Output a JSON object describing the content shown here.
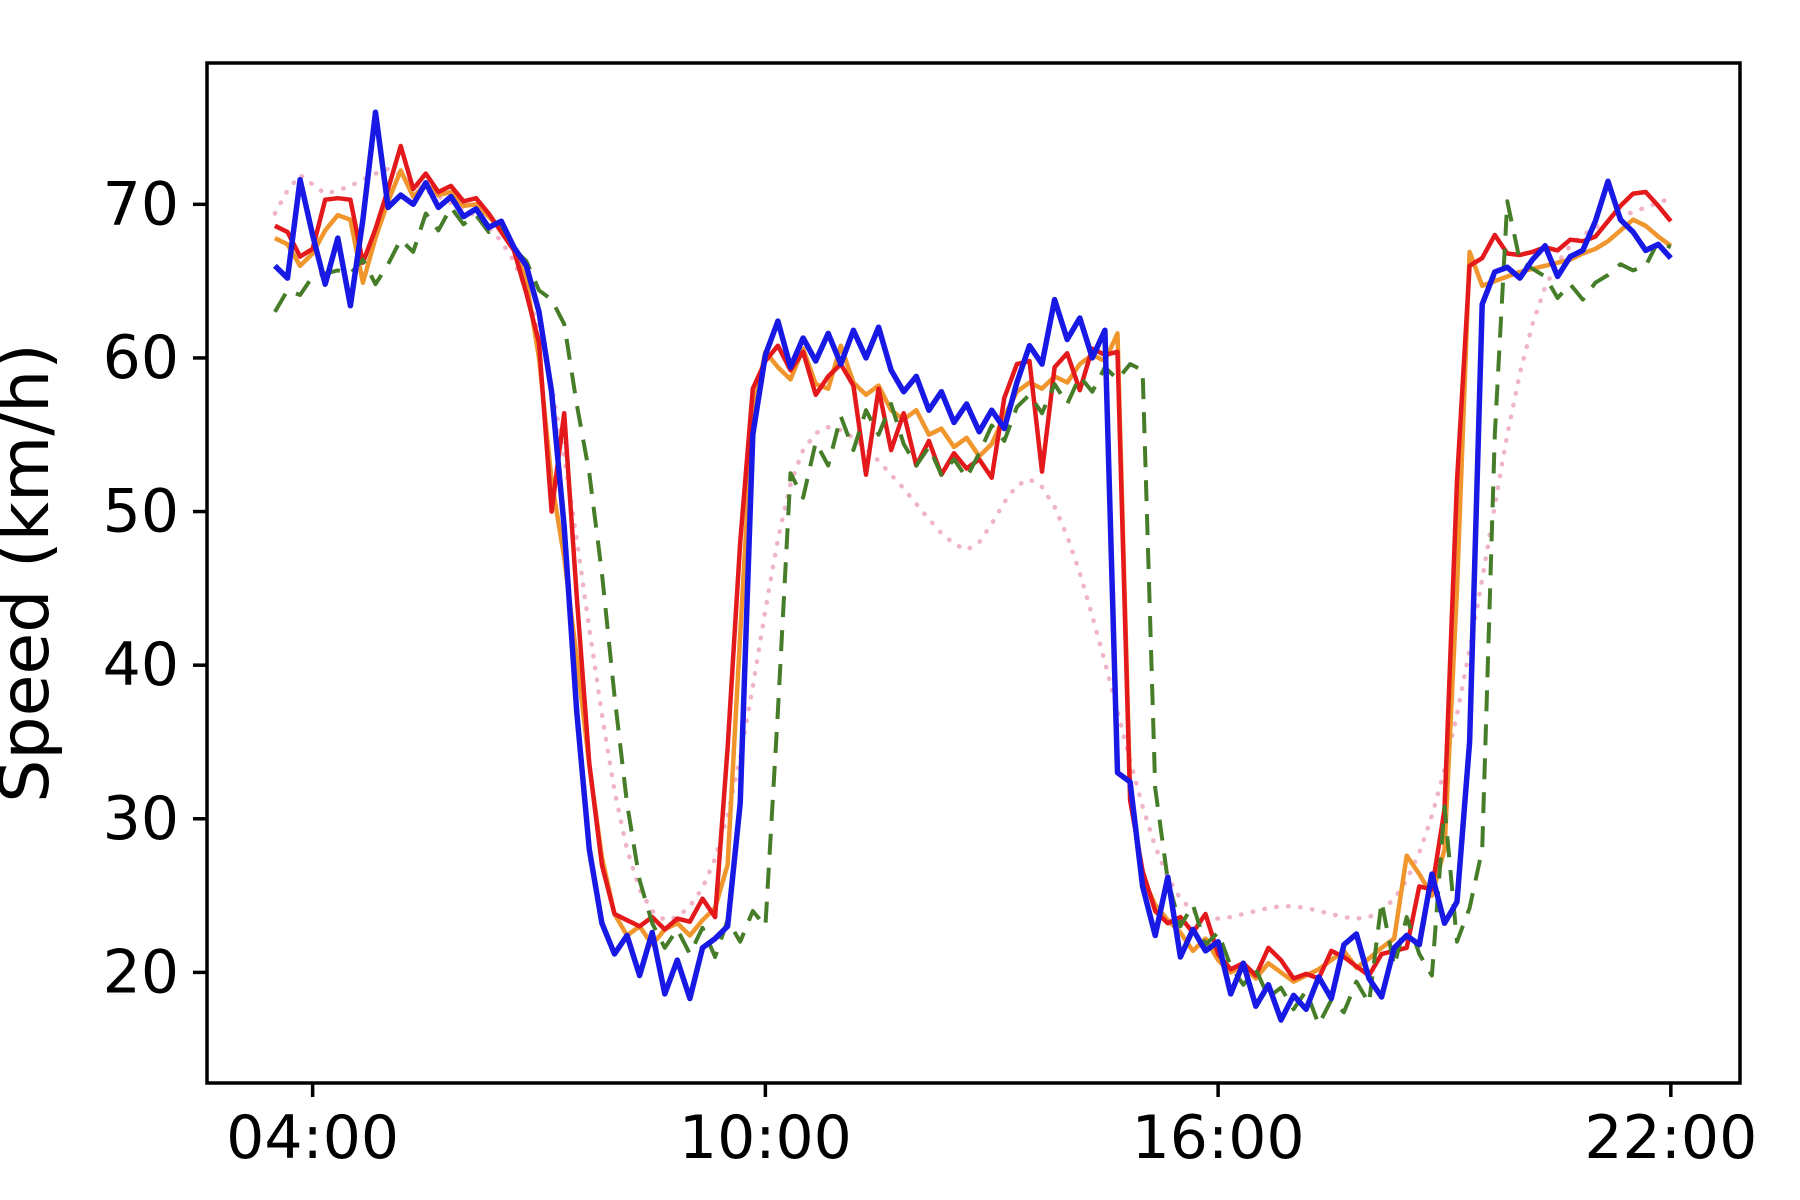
{
  "figure": {
    "background_color": "#ffffff",
    "axes_color": "#000000"
  },
  "chart_data": {
    "type": "line",
    "title": "",
    "xlabel": "",
    "ylabel": "Speed (km/h)",
    "grid": false,
    "legend_position": "none",
    "x_tick_labels": [
      "04:00",
      "10:00",
      "16:00",
      "22:00"
    ],
    "y_ticks": [
      20,
      30,
      40,
      50,
      60,
      70
    ],
    "xlim_minutes": [
      156,
      1375
    ],
    "ylim": [
      12.8,
      79.2
    ],
    "x_unit": "time of day (HH:MM)",
    "y_unit": "km/h",
    "times": [
      "03:30",
      "03:40",
      "03:50",
      "04:00",
      "04:10",
      "04:20",
      "04:30",
      "04:40",
      "04:50",
      "05:00",
      "05:10",
      "05:20",
      "05:30",
      "05:40",
      "05:50",
      "06:00",
      "06:10",
      "06:20",
      "06:30",
      "06:40",
      "06:50",
      "07:00",
      "07:10",
      "07:20",
      "07:30",
      "07:40",
      "07:50",
      "08:00",
      "08:10",
      "08:20",
      "08:30",
      "08:40",
      "08:50",
      "09:00",
      "09:10",
      "09:20",
      "09:30",
      "09:40",
      "09:50",
      "10:00",
      "10:10",
      "10:20",
      "10:30",
      "10:40",
      "10:50",
      "11:00",
      "11:10",
      "11:20",
      "11:30",
      "11:40",
      "11:50",
      "12:00",
      "12:10",
      "12:20",
      "12:30",
      "12:40",
      "12:50",
      "13:00",
      "13:10",
      "13:20",
      "13:30",
      "13:40",
      "13:50",
      "14:00",
      "14:10",
      "14:20",
      "14:30",
      "14:40",
      "14:50",
      "15:00",
      "15:10",
      "15:20",
      "15:30",
      "15:40",
      "15:50",
      "16:00",
      "16:10",
      "16:20",
      "16:30",
      "16:40",
      "16:50",
      "17:00",
      "17:10",
      "17:20",
      "17:30",
      "17:40",
      "17:50",
      "18:00",
      "18:10",
      "18:20",
      "18:30",
      "18:40",
      "18:50",
      "19:00",
      "19:10",
      "19:20",
      "19:30",
      "19:40",
      "19:50",
      "20:00",
      "20:10",
      "20:20",
      "20:30",
      "20:40",
      "20:50",
      "21:00",
      "21:10",
      "21:20",
      "21:30",
      "21:40",
      "21:50",
      "22:00"
    ],
    "series": [
      {
        "name": "pink-dotted",
        "color": "#f0b4c8",
        "style": "dotted",
        "width": 4.5,
        "values": [
          69.4,
          70.9,
          71.9,
          71.3,
          70.7,
          70.9,
          71.2,
          71.6,
          72.0,
          72.3,
          71.9,
          71.4,
          70.9,
          70.5,
          70.1,
          69.7,
          69.2,
          68.5,
          67.6,
          66.3,
          64.4,
          61.8,
          58.2,
          53.6,
          48.2,
          42.4,
          36.8,
          31.8,
          28.0,
          25.4,
          24.0,
          23.4,
          23.6,
          24.3,
          25.5,
          27.4,
          30.2,
          34.0,
          38.6,
          43.6,
          48.2,
          51.8,
          54.0,
          55.1,
          55.5,
          55.3,
          54.8,
          54.1,
          53.3,
          52.4,
          51.5,
          50.5,
          49.5,
          48.6,
          47.9,
          47.5,
          48.0,
          49.2,
          50.6,
          51.7,
          52.1,
          51.6,
          50.3,
          48.4,
          46.0,
          43.2,
          40.2,
          37.0,
          33.8,
          30.8,
          28.2,
          26.2,
          24.8,
          24.0,
          23.6,
          23.5,
          23.6,
          23.8,
          24.0,
          24.2,
          24.3,
          24.3,
          24.2,
          24.0,
          23.8,
          23.6,
          23.5,
          23.6,
          24.0,
          24.8,
          26.0,
          27.8,
          30.2,
          33.2,
          36.8,
          41.0,
          45.6,
          50.4,
          55.0,
          59.0,
          62.2,
          64.6,
          66.2,
          67.3,
          68.0,
          68.5,
          68.9,
          69.2,
          69.5,
          69.8,
          70.1,
          70.4
        ]
      },
      {
        "name": "orange-solid",
        "color": "#f0962d",
        "style": "solid",
        "width": 4.5,
        "values": [
          67.8,
          67.4,
          66.0,
          66.8,
          68.3,
          69.3,
          69.0,
          64.9,
          67.8,
          70.2,
          72.2,
          70.5,
          71.3,
          70.6,
          70.8,
          69.9,
          70.0,
          69.2,
          68.4,
          67.2,
          65.0,
          60.0,
          52.0,
          47.0,
          40.5,
          33.5,
          27.5,
          23.8,
          22.4,
          23.0,
          21.8,
          22.8,
          23.2,
          22.4,
          23.4,
          24.2,
          27.0,
          42.0,
          56.5,
          60.4,
          59.4,
          58.6,
          60.6,
          58.3,
          58.0,
          60.8,
          58.4,
          57.6,
          58.2,
          56.6,
          56.0,
          56.6,
          55.0,
          55.4,
          54.2,
          54.8,
          53.6,
          54.4,
          56.2,
          57.8,
          58.4,
          58.0,
          58.8,
          58.4,
          59.6,
          60.2,
          59.8,
          61.6,
          31.8,
          26.2,
          24.4,
          23.4,
          22.6,
          21.4,
          22.2,
          20.8,
          20.0,
          20.4,
          19.6,
          20.6,
          20.0,
          19.4,
          19.8,
          20.2,
          20.8,
          21.4,
          20.3,
          20.9,
          21.6,
          22.2,
          27.6,
          26.4,
          25.0,
          28.0,
          45.0,
          66.9,
          64.7,
          65.0,
          65.3,
          65.6,
          65.8,
          66.0,
          66.2,
          66.4,
          66.8,
          67.1,
          67.6,
          68.3,
          69.0,
          68.6,
          67.9,
          67.3
        ]
      },
      {
        "name": "red-solid",
        "color": "#e3191c",
        "style": "solid",
        "width": 4.5,
        "values": [
          68.6,
          68.2,
          66.6,
          67.1,
          70.3,
          70.4,
          70.3,
          66.2,
          68.4,
          71.0,
          73.8,
          71.0,
          72.0,
          70.8,
          71.2,
          70.2,
          70.4,
          69.4,
          68.2,
          67.0,
          64.2,
          61.0,
          50.0,
          56.4,
          44.5,
          33.6,
          27.0,
          23.8,
          23.4,
          23.0,
          23.6,
          22.8,
          23.5,
          23.3,
          24.8,
          23.6,
          34.6,
          48.0,
          58.0,
          59.8,
          60.8,
          59.2,
          60.4,
          57.6,
          58.8,
          59.6,
          58.2,
          52.4,
          58.0,
          54.0,
          56.4,
          53.0,
          54.6,
          52.4,
          53.8,
          52.8,
          53.4,
          52.2,
          57.4,
          59.6,
          59.8,
          52.6,
          59.4,
          60.3,
          57.9,
          60.6,
          60.2,
          60.4,
          31.2,
          26.6,
          24.0,
          23.2,
          23.6,
          22.6,
          23.8,
          21.2,
          20.2,
          20.6,
          19.8,
          21.6,
          20.8,
          19.6,
          19.9,
          19.6,
          21.4,
          21.0,
          20.4,
          19.8,
          21.2,
          21.4,
          21.6,
          25.6,
          25.4,
          30.6,
          52.0,
          66.0,
          66.5,
          68.0,
          66.8,
          66.7,
          66.9,
          67.2,
          67.0,
          67.7,
          67.6,
          67.9,
          68.9,
          69.9,
          70.7,
          70.8,
          69.9,
          68.9
        ]
      },
      {
        "name": "green-dashed",
        "color": "#467d28",
        "style": "dashed",
        "width": 4,
        "values": [
          63.0,
          64.4,
          64.1,
          65.3,
          65.5,
          65.7,
          65.5,
          66.4,
          64.8,
          66.1,
          67.7,
          66.9,
          69.4,
          68.3,
          69.8,
          68.7,
          69.3,
          68.2,
          68.7,
          67.1,
          66.3,
          64.4,
          63.8,
          62.2,
          57.0,
          52.5,
          46.0,
          38.0,
          31.0,
          26.0,
          23.2,
          21.6,
          22.8,
          21.2,
          22.9,
          21.0,
          23.4,
          22.0,
          24.0,
          23.0,
          37.0,
          52.5,
          50.9,
          54.5,
          53.0,
          56.2,
          54.0,
          56.6,
          55.0,
          57.0,
          54.4,
          53.0,
          54.2,
          52.4,
          53.4,
          52.2,
          53.8,
          55.6,
          54.6,
          56.8,
          57.6,
          56.4,
          58.3,
          57.0,
          58.8,
          57.8,
          59.4,
          58.6,
          59.6,
          59.2,
          32.0,
          26.0,
          23.0,
          24.4,
          21.8,
          22.6,
          20.4,
          19.2,
          20.2,
          18.4,
          19.0,
          17.6,
          18.8,
          16.6,
          18.2,
          17.4,
          19.4,
          18.0,
          24.6,
          20.4,
          23.6,
          21.2,
          19.8,
          30.8,
          22.0,
          24.2,
          28.0,
          55.0,
          70.2,
          66.3,
          65.8,
          65.3,
          63.9,
          64.8,
          63.8,
          64.9,
          65.4,
          66.1,
          65.7,
          66.0,
          67.6,
          67.2
        ]
      },
      {
        "name": "blue-solid",
        "color": "#1919e6",
        "style": "solid",
        "width": 5.5,
        "values": [
          66.0,
          65.2,
          71.6,
          68.0,
          64.8,
          67.8,
          63.4,
          69.0,
          76.0,
          69.8,
          70.6,
          70.0,
          71.4,
          69.8,
          70.5,
          69.2,
          69.7,
          68.5,
          68.9,
          67.2,
          66.0,
          63.0,
          57.8,
          49.0,
          37.0,
          28.0,
          23.2,
          21.2,
          22.4,
          19.8,
          22.6,
          18.6,
          20.8,
          18.3,
          21.6,
          22.2,
          23.0,
          31.0,
          55.0,
          60.2,
          62.4,
          59.4,
          61.3,
          59.8,
          61.6,
          59.6,
          61.8,
          60.0,
          62.0,
          59.2,
          57.8,
          58.8,
          56.6,
          57.8,
          55.8,
          57.0,
          55.2,
          56.6,
          55.4,
          58.4,
          60.8,
          59.6,
          63.8,
          61.2,
          62.6,
          60.0,
          61.8,
          33.0,
          32.4,
          25.6,
          22.4,
          26.2,
          21.0,
          22.8,
          21.4,
          22.0,
          18.6,
          20.6,
          17.8,
          19.2,
          16.9,
          18.5,
          17.6,
          19.7,
          18.3,
          21.8,
          22.5,
          19.6,
          18.4,
          21.6,
          22.4,
          21.8,
          26.4,
          23.2,
          24.6,
          35.0,
          63.5,
          65.6,
          65.9,
          65.2,
          66.4,
          67.3,
          65.3,
          66.6,
          67.0,
          68.9,
          71.5,
          69.0,
          68.2,
          67.0,
          67.4,
          66.5
        ]
      }
    ]
  }
}
